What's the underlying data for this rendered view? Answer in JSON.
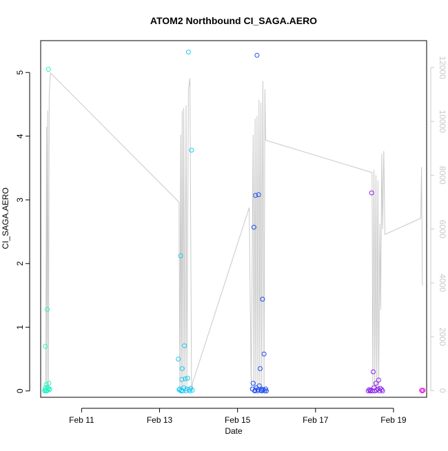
{
  "chart_data": {
    "type": "scatter",
    "title": "ATOM2 Northbound CI_SAGA.AERO",
    "xlabel": "Date",
    "ylabel": "CI_SAGA.AERO",
    "x_axis": {
      "unit": "days since Feb 10 00:00 (display)",
      "range": [
        9.95,
        19.85
      ],
      "ticks": [
        {
          "value": 11,
          "label": "Feb 11"
        },
        {
          "value": 13,
          "label": "Feb 13"
        },
        {
          "value": 15,
          "label": "Feb 15"
        },
        {
          "value": 17,
          "label": "Feb 17"
        },
        {
          "value": 19,
          "label": "Feb 19"
        }
      ]
    },
    "y_axis_left": {
      "range": [
        -0.1,
        5.5
      ],
      "ticks": [
        0,
        1,
        2,
        3,
        4,
        5
      ]
    },
    "y_axis_right": {
      "range": [
        -250,
        13000
      ],
      "ticks": [
        0,
        2000,
        4000,
        6000,
        8000,
        10000,
        12000
      ],
      "color": "#c8c8c8"
    },
    "grid": false,
    "legend": "none",
    "colors": {
      "axis": "#000000",
      "secondary": "#c8c8c8",
      "background_line": "#c8c8c8"
    },
    "background_line": [
      [
        10.08,
        0
      ],
      [
        10.1,
        9800
      ],
      [
        10.11,
        0
      ],
      [
        10.13,
        10400
      ],
      [
        10.15,
        0
      ],
      [
        10.17,
        11000
      ],
      [
        10.2,
        11800
      ],
      [
        13.5,
        7000
      ],
      [
        13.52,
        0
      ],
      [
        13.54,
        9500
      ],
      [
        13.56,
        0
      ],
      [
        13.58,
        10400
      ],
      [
        13.6,
        0
      ],
      [
        13.62,
        10500
      ],
      [
        13.65,
        0
      ],
      [
        13.68,
        10600
      ],
      [
        13.7,
        0
      ],
      [
        13.74,
        11200
      ],
      [
        13.78,
        11600
      ],
      [
        13.82,
        0
      ],
      [
        13.85,
        300
      ],
      [
        15.3,
        6800
      ],
      [
        15.35,
        0
      ],
      [
        15.4,
        9500
      ],
      [
        15.42,
        0
      ],
      [
        15.45,
        10100
      ],
      [
        15.47,
        0
      ],
      [
        15.5,
        10200
      ],
      [
        15.52,
        0
      ],
      [
        15.55,
        10800
      ],
      [
        15.57,
        0
      ],
      [
        15.6,
        10700
      ],
      [
        15.62,
        0
      ],
      [
        15.65,
        11500
      ],
      [
        15.68,
        0
      ],
      [
        15.7,
        11200
      ],
      [
        15.72,
        9300
      ],
      [
        18.45,
        8100
      ],
      [
        18.47,
        0
      ],
      [
        18.5,
        8200
      ],
      [
        18.52,
        0
      ],
      [
        18.55,
        8000
      ],
      [
        18.57,
        0
      ],
      [
        18.6,
        7800
      ],
      [
        18.62,
        0
      ],
      [
        18.65,
        6200
      ],
      [
        18.67,
        3000
      ],
      [
        18.7,
        8800
      ],
      [
        18.72,
        6000
      ],
      [
        18.75,
        8900
      ],
      [
        18.78,
        5800
      ],
      [
        19.7,
        6400
      ],
      [
        19.72,
        8300
      ],
      [
        19.74,
        3900
      ]
    ],
    "series": [
      {
        "color": "#22f5c0",
        "points": [
          [
            10.05,
            0.0
          ],
          [
            10.06,
            0.02
          ],
          [
            10.07,
            0.7
          ],
          [
            10.08,
            0.0
          ],
          [
            10.08,
            0.05
          ],
          [
            10.09,
            0.1
          ],
          [
            10.1,
            0.0
          ],
          [
            10.12,
            1.28
          ],
          [
            10.13,
            0.01
          ],
          [
            10.14,
            0.04
          ],
          [
            10.15,
            5.05
          ],
          [
            10.16,
            0.12
          ],
          [
            10.17,
            0.02
          ],
          [
            10.18,
            0.03
          ]
        ]
      },
      {
        "color": "#1ec8f0",
        "points": [
          [
            13.48,
            0.5
          ],
          [
            13.5,
            0.02
          ],
          [
            13.52,
            0.03
          ],
          [
            13.54,
            2.12
          ],
          [
            13.55,
            0.0
          ],
          [
            13.56,
            0.01
          ],
          [
            13.57,
            0.18
          ],
          [
            13.58,
            0.35
          ],
          [
            13.6,
            0.0
          ],
          [
            13.62,
            0.05
          ],
          [
            13.64,
            0.71
          ],
          [
            13.66,
            0.19
          ],
          [
            13.68,
            0.0
          ],
          [
            13.7,
            0.03
          ],
          [
            13.72,
            0.2
          ],
          [
            13.74,
            5.32
          ],
          [
            13.76,
            0.02
          ],
          [
            13.78,
            0.0
          ],
          [
            13.8,
            0.04
          ],
          [
            13.82,
            3.78
          ],
          [
            13.84,
            0.01
          ]
        ]
      },
      {
        "color": "#1e4cf0",
        "points": [
          [
            15.38,
            0.03
          ],
          [
            15.4,
            0.12
          ],
          [
            15.42,
            2.57
          ],
          [
            15.44,
            0.0
          ],
          [
            15.46,
            3.07
          ],
          [
            15.48,
            0.05
          ],
          [
            15.5,
            5.27
          ],
          [
            15.52,
            0.0
          ],
          [
            15.54,
            3.08
          ],
          [
            15.56,
            0.08
          ],
          [
            15.58,
            0.35
          ],
          [
            15.6,
            0.01
          ],
          [
            15.62,
            0.0
          ],
          [
            15.64,
            1.44
          ],
          [
            15.66,
            0.02
          ],
          [
            15.68,
            0.58
          ],
          [
            15.7,
            0.0
          ],
          [
            15.72,
            0.03
          ],
          [
            15.74,
            0.0
          ],
          [
            15.45,
            0.01
          ],
          [
            15.53,
            0.02
          ],
          [
            15.61,
            0.03
          ]
        ]
      },
      {
        "color": "#8a1ef0",
        "points": [
          [
            18.35,
            0.0
          ],
          [
            18.38,
            0.02
          ],
          [
            18.4,
            0.0
          ],
          [
            18.42,
            0.01
          ],
          [
            18.44,
            3.11
          ],
          [
            18.46,
            0.0
          ],
          [
            18.48,
            0.3
          ],
          [
            18.5,
            0.05
          ],
          [
            18.52,
            0.0
          ],
          [
            18.55,
            0.12
          ],
          [
            18.57,
            0.01
          ],
          [
            18.6,
            0.03
          ],
          [
            18.62,
            0.17
          ],
          [
            18.64,
            0.0
          ],
          [
            18.66,
            0.04
          ],
          [
            18.7,
            0.02
          ],
          [
            18.72,
            0.0
          ]
        ]
      },
      {
        "color": "#e01ee0",
        "points": [
          [
            19.72,
            0.01
          ],
          [
            19.74,
            0.0
          ],
          [
            19.76,
            0.01
          ]
        ]
      }
    ]
  }
}
